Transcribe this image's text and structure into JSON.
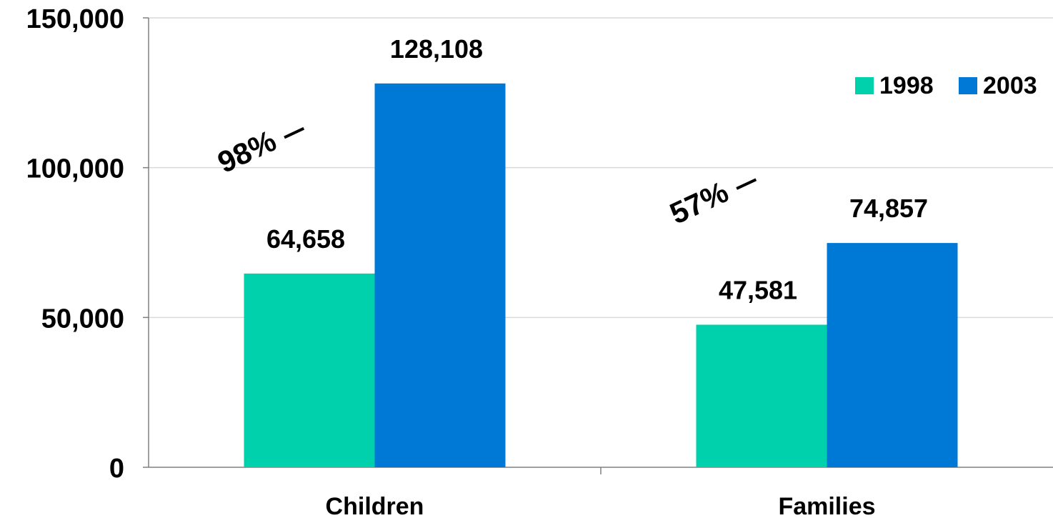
{
  "chart_data": {
    "type": "bar",
    "categories": [
      "Children",
      "Families"
    ],
    "series": [
      {
        "name": "1998",
        "values": [
          64658,
          47581
        ],
        "color": "#00D1AD",
        "labels": [
          "64,658",
          "47,581"
        ]
      },
      {
        "name": "2003",
        "values": [
          128108,
          74857
        ],
        "color": "#0078D6",
        "labels": [
          "128,108",
          "74,857"
        ]
      }
    ],
    "ylim": [
      0,
      150000
    ],
    "yticks": [
      0,
      50000,
      100000,
      150000
    ],
    "ytick_labels": [
      "0",
      "50,000",
      "100,000",
      "150,000"
    ],
    "grid": true,
    "legend_position": "top-right",
    "annotations": [
      {
        "category": "Children",
        "text": "98%"
      },
      {
        "category": "Families",
        "text": "57%"
      }
    ]
  }
}
